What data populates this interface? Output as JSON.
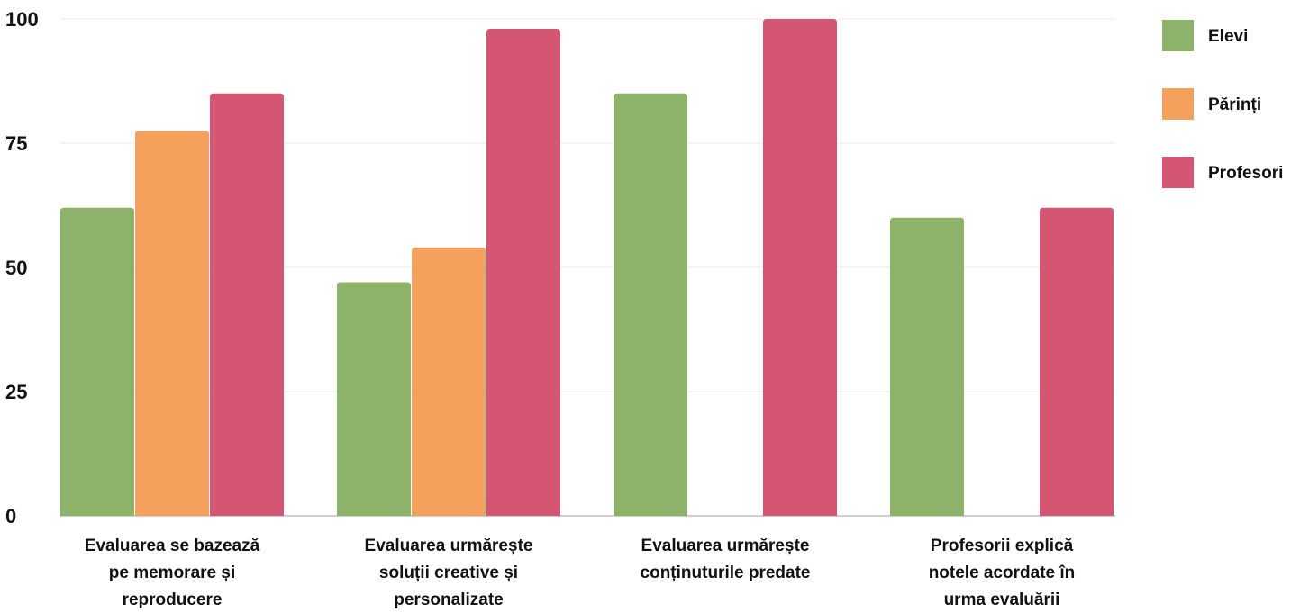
{
  "chart_data": {
    "type": "bar",
    "categories": [
      [
        "Evaluarea se bazează",
        "pe memorare și",
        "reproducere"
      ],
      [
        "Evaluarea urmărește",
        "soluții creative și",
        "personalizate"
      ],
      [
        "Evaluarea urmărește",
        "conținuturile predate"
      ],
      [
        "Profesorii explică",
        "notele acordate în",
        "urma evaluării"
      ]
    ],
    "series": [
      {
        "name": "Elevi",
        "color": "#8db36b",
        "values": [
          62,
          47,
          85,
          60
        ]
      },
      {
        "name": "Părinți",
        "color": "#f3a15c",
        "values": [
          77.5,
          54,
          null,
          null
        ]
      },
      {
        "name": "Profesori",
        "color": "#d45673",
        "values": [
          85,
          98,
          100,
          62
        ]
      }
    ],
    "y_ticks": [
      "0",
      "25",
      "50",
      "75",
      "100"
    ],
    "ylim": [
      0,
      100
    ],
    "grid": true,
    "legend_position": "right"
  }
}
